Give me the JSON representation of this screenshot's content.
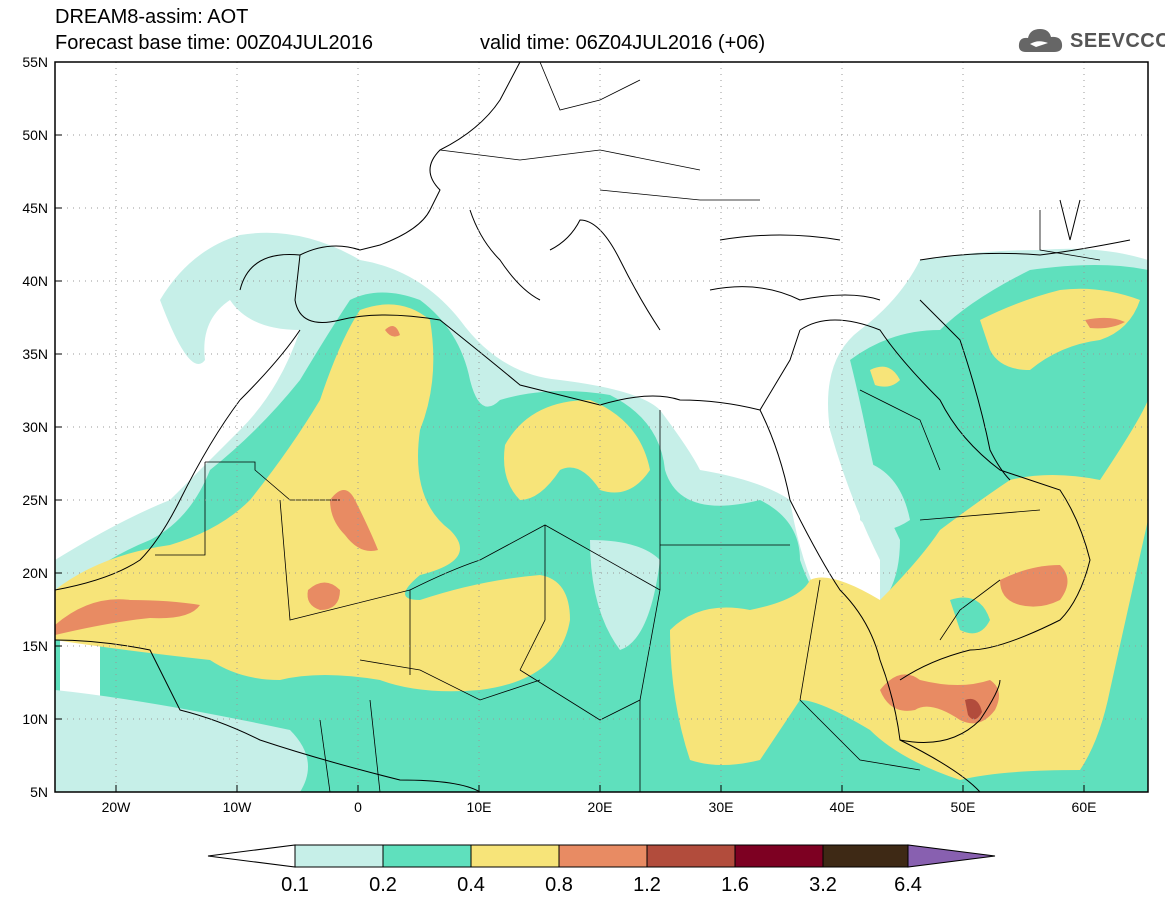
{
  "title": {
    "line1": "DREAM8-assim: AOT",
    "forecast_base": "Forecast base time: 00Z04JUL2016",
    "valid_time": "valid time: 06Z04JUL2016 (+06)"
  },
  "logo": {
    "text": "SEEVCCC",
    "icon": "cloud-icon"
  },
  "map": {
    "lat_labels": [
      "55N",
      "50N",
      "45N",
      "40N",
      "35N",
      "30N",
      "25N",
      "20N",
      "15N",
      "10N",
      "5N"
    ],
    "lon_labels": [
      "20W",
      "10W",
      "0",
      "10E",
      "20E",
      "30E",
      "40E",
      "50E",
      "60E"
    ]
  },
  "colorbar": {
    "labels": [
      "0.1",
      "0.2",
      "0.4",
      "0.8",
      "1.2",
      "1.6",
      "3.2",
      "6.4"
    ],
    "colors": [
      "#ffffff",
      "#c6efe8",
      "#5fe0bd",
      "#f7e479",
      "#e88b63",
      "#b24c3c",
      "#7d0022",
      "#3e2915",
      "#8860b0"
    ]
  },
  "colors": {
    "level1": "#c6efe8",
    "level2": "#5fe0bd",
    "level3": "#f7e479",
    "level4": "#e88b63",
    "level5": "#b24c3c"
  }
}
